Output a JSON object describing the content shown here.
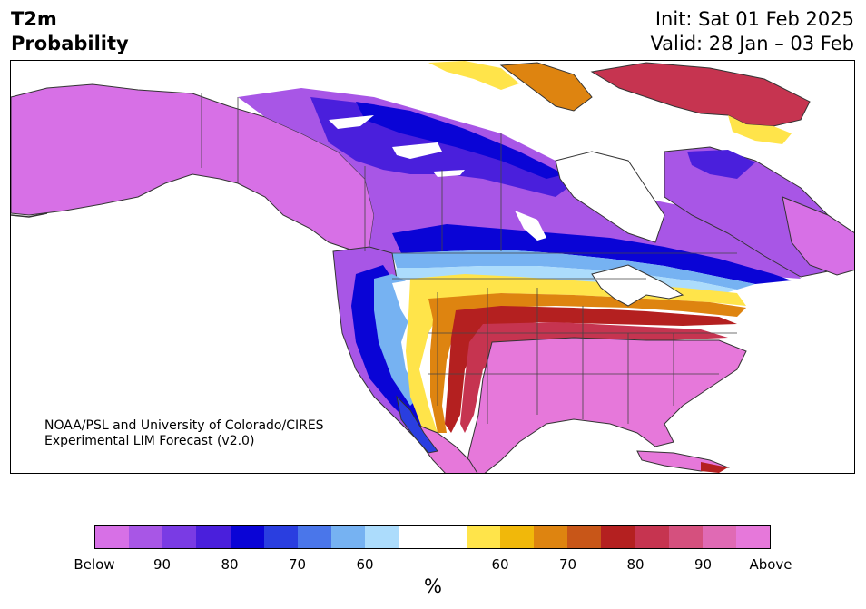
{
  "header": {
    "variable": "T2m",
    "product": "Probability",
    "init": "Init: Sat 01 Feb 2025",
    "valid": "Valid: 28 Jan – 03 Feb"
  },
  "credit": {
    "line1": "NOAA/PSL and University of Colorado/CIRES",
    "line2": "Experimental LIM Forecast (v2.0)"
  },
  "colorbar": {
    "unit": "%",
    "colors": [
      "#d770e6",
      "#a856e6",
      "#7a3be4",
      "#4a1fdc",
      "#0a04d6",
      "#2a3ee0",
      "#4a76ea",
      "#76b2f2",
      "#acdcfc",
      "#ffffff",
      "#ffffff",
      "#ffe44a",
      "#f1b80a",
      "#de8410",
      "#c85618",
      "#b42020",
      "#c63450",
      "#d5507e",
      "#e06ab4",
      "#e678da"
    ],
    "tick_labels": [
      "Below",
      "90",
      "80",
      "70",
      "60",
      "60",
      "70",
      "80",
      "90",
      "Above"
    ]
  },
  "map": {
    "palette": {
      "deep_purple": "#a856e6",
      "violet": "#d770e6",
      "indigo": "#4a1fdc",
      "blue": "#0a04d6",
      "lightblue": "#76b2f2",
      "paleblue": "#acdcfc",
      "yellow": "#ffe44a",
      "orange": "#de8410",
      "red": "#b42020",
      "crimson": "#c63450",
      "pink": "#e678da"
    }
  }
}
